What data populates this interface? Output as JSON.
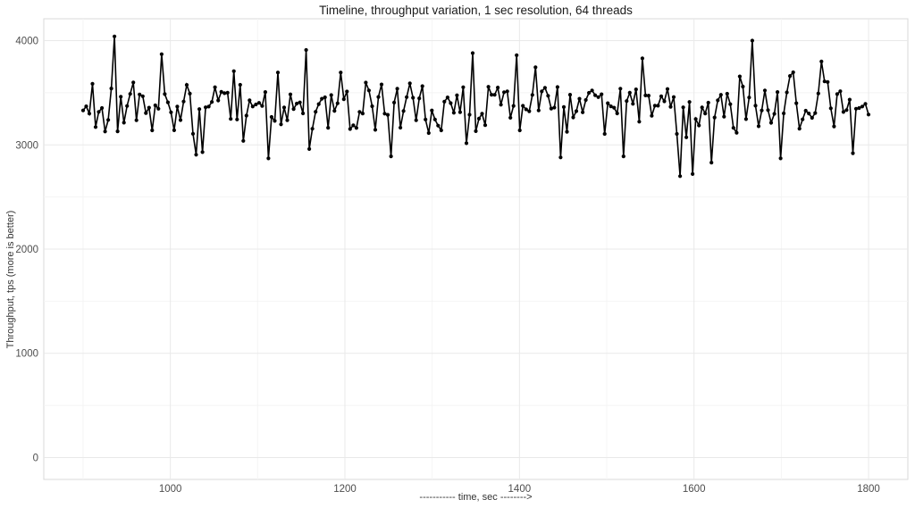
{
  "chart_data": {
    "type": "line",
    "title": "Timeline, throughput variation, 1 sec resolution, 64 threads",
    "xlabel": "----------- time, sec -------->",
    "ylabel": "Throughput, tps (more is better)",
    "legend": "none",
    "grid": {
      "major": true,
      "minor": true
    },
    "x_ticks": [
      1000,
      1200,
      1400,
      1600,
      1800
    ],
    "x_minor_ticks": [
      900,
      1100,
      1300,
      1500,
      1700
    ],
    "y_ticks": [
      0,
      1000,
      2000,
      3000,
      4000
    ],
    "y_minor_ticks": [
      500,
      1500,
      2500,
      3500
    ],
    "xlim": [
      855,
      1845
    ],
    "ylim": [
      -210,
      4210
    ],
    "series": [
      {
        "name": "throughput",
        "t_start": 900,
        "t_end": 1800,
        "n_points": 251,
        "baseline_mean": 3370,
        "baseline_sd": 135,
        "observed_min": 2700,
        "observed_max": 4040,
        "seed": 1337,
        "anomalies": [
          {
            "t": 937,
            "v": 4040
          },
          {
            "t": 990,
            "v": 3870
          },
          {
            "t": 1030,
            "v": 2905
          },
          {
            "t": 1037,
            "v": 2930
          },
          {
            "t": 1113,
            "v": 2870
          },
          {
            "t": 1154,
            "v": 3910
          },
          {
            "t": 1160,
            "v": 2960
          },
          {
            "t": 1253,
            "v": 2890
          },
          {
            "t": 1347,
            "v": 3880
          },
          {
            "t": 1395,
            "v": 3860
          },
          {
            "t": 1447,
            "v": 2880
          },
          {
            "t": 1520,
            "v": 2890
          },
          {
            "t": 1540,
            "v": 3830
          },
          {
            "t": 1584,
            "v": 2700
          },
          {
            "t": 1619,
            "v": 2830
          },
          {
            "t": 1668,
            "v": 4000
          },
          {
            "t": 1700,
            "v": 2870
          },
          {
            "t": 1745,
            "v": 3800
          },
          {
            "t": 1782,
            "v": 2920
          }
        ]
      }
    ],
    "style": {
      "line_color": "#000000",
      "line_width": 1.6,
      "marker_shape": "circle",
      "marker_radius": 2.1,
      "marker_color": "#000000",
      "background": "#ffffff",
      "panel_border": "#d9d9d9",
      "grid_major_color": "#e9e9e9",
      "grid_minor_color": "#f4f4f4",
      "title_color": "#1a1a1a",
      "tick_label_color": "#4d4d4d",
      "axis_label_color": "#333333"
    }
  }
}
